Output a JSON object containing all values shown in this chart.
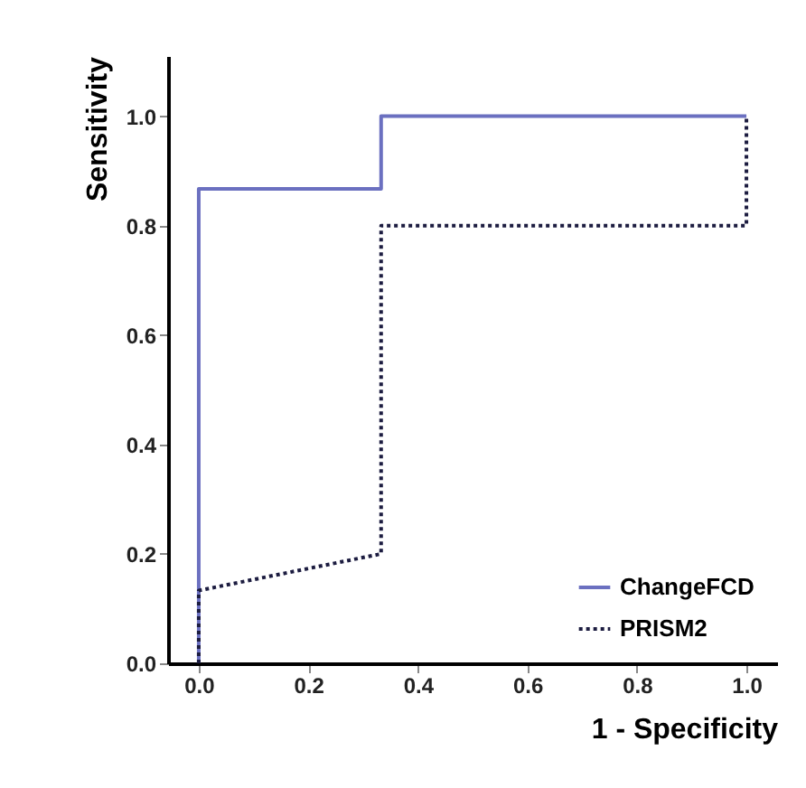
{
  "chart_data": {
    "type": "step",
    "xlabel": "1 - Specificity",
    "ylabel": "Sensitivity",
    "xlim": [
      -0.056,
      1.056
    ],
    "ylim": [
      0,
      1.11
    ],
    "xticks": [
      {
        "value": 0,
        "label": "0.0"
      },
      {
        "value": 0.2,
        "label": "0.2"
      },
      {
        "value": 0.4,
        "label": "0.4"
      },
      {
        "value": 0.6,
        "label": "0.6"
      },
      {
        "value": 0.8,
        "label": "0.8"
      },
      {
        "value": 1,
        "label": "1.0"
      }
    ],
    "yticks": [
      {
        "value": 0,
        "label": "0.0"
      },
      {
        "value": 0.2,
        "label": "0.2"
      },
      {
        "value": 0.4,
        "label": "0.4"
      },
      {
        "value": 0.6,
        "label": "0.6"
      },
      {
        "value": 0.8,
        "label": "0.8"
      },
      {
        "value": 1,
        "label": "1.0"
      }
    ],
    "series": [
      {
        "name": "ChangeFCD",
        "type": "line",
        "color": "#6b70c0",
        "line_style": "solid",
        "x": [
          0,
          0,
          0.333,
          0.333,
          1
        ],
        "values": [
          0,
          0.867,
          0.867,
          1,
          1
        ]
      },
      {
        "name": "PRISM2",
        "type": "line",
        "color": "#1c1c40",
        "line_style": "dotted",
        "x": [
          0,
          0,
          0.333,
          0.333,
          1,
          1
        ],
        "values": [
          0,
          0.133,
          0.2,
          0.8,
          0.8,
          1
        ]
      }
    ],
    "grid": false,
    "legend": "bottom right"
  }
}
